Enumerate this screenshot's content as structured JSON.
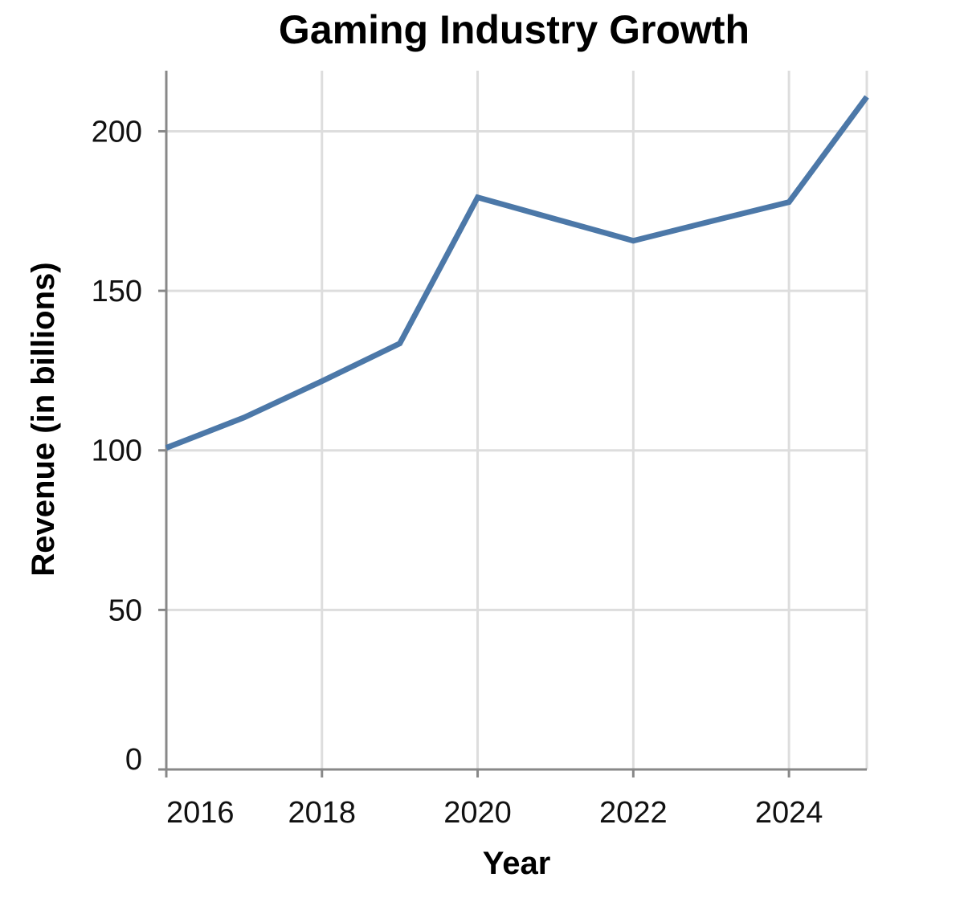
{
  "chart_data": {
    "type": "line",
    "title": "Gaming Industry Growth",
    "xlabel": "Year",
    "ylabel": "Revenue (in billions)",
    "x": [
      2016,
      2017,
      2018,
      2019,
      2020,
      2021,
      2022,
      2023,
      2024,
      2025
    ],
    "series": [
      {
        "name": "Revenue",
        "values": [
          100.8,
          110.3,
          121.7,
          133.5,
          179.3,
          172.5,
          165.7,
          171.8,
          177.8,
          210.8
        ],
        "color": "#4c78a8"
      }
    ],
    "xlim": [
      2016,
      2025
    ],
    "ylim": [
      0,
      219
    ],
    "xticks": [
      "2016",
      "2018",
      "2020",
      "2022",
      "2024"
    ],
    "yticks": [
      "0",
      "50",
      "100",
      "150",
      "200"
    ],
    "grid": true,
    "legend": "none"
  }
}
